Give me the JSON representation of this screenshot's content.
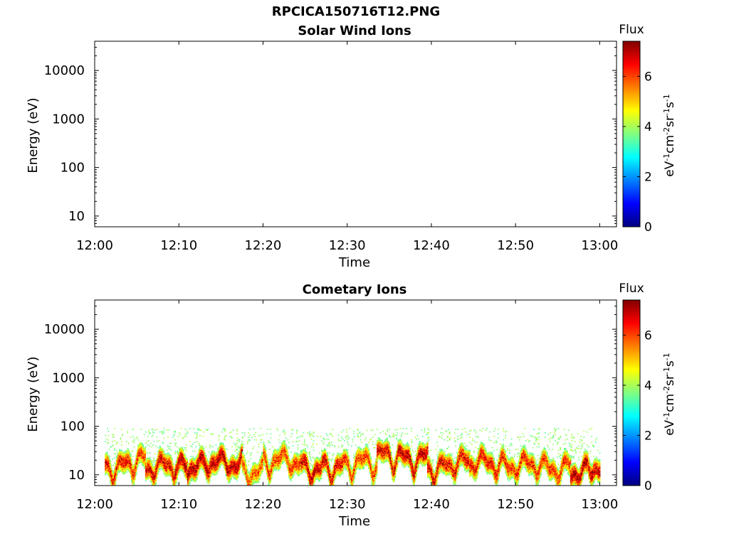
{
  "figure": {
    "filename": "RPCICA150716T12.PNG"
  },
  "chart_data": [
    {
      "type": "heatmap",
      "title": "Solar Wind Ions",
      "xlabel": "Time",
      "ylabel": "Energy (eV)",
      "yscale": "log",
      "xticks": [
        "12:00",
        "12:10",
        "12:20",
        "12:30",
        "12:40",
        "12:50",
        "13:00"
      ],
      "yticks": [
        "10",
        "100",
        "1000",
        "10000"
      ],
      "xlim_minutes": [
        0,
        62
      ],
      "ylim": [
        6,
        40000
      ],
      "colorbar": {
        "title": "Flux",
        "label": "eV-1cm-2sr-1s-1",
        "ticks": [
          "0",
          "2",
          "4",
          "6"
        ],
        "range": [
          0,
          7.4
        ],
        "colormap": "jet"
      },
      "segments": []
    },
    {
      "type": "heatmap",
      "title": "Cometary Ions",
      "xlabel": "Time",
      "ylabel": "Energy (eV)",
      "yscale": "log",
      "xticks": [
        "12:00",
        "12:10",
        "12:20",
        "12:30",
        "12:40",
        "12:50",
        "13:00"
      ],
      "yticks": [
        "10",
        "100",
        "1000",
        "10000"
      ],
      "xlim_minutes": [
        0,
        62
      ],
      "ylim": [
        6,
        40000
      ],
      "colorbar": {
        "title": "Flux",
        "label": "eV-1cm-2sr-1s-1",
        "ticks": [
          "0",
          "2",
          "4",
          "6"
        ],
        "range": [
          0,
          7.4
        ],
        "colormap": "jet"
      },
      "segments": [
        {
          "t": [
            1.2,
            4.5
          ],
          "center_eV": 15,
          "peak_flux": 6.6
        },
        {
          "t": [
            4.5,
            6.0
          ],
          "center_eV": 20,
          "peak_flux": 6.2
        },
        {
          "t": [
            6.0,
            9.5
          ],
          "center_eV": 15,
          "peak_flux": 6.8
        },
        {
          "t": [
            9.5,
            11.0
          ],
          "center_eV": 14,
          "peak_flux": 7.2
        },
        {
          "t": [
            11.0,
            13.5
          ],
          "center_eV": 15,
          "peak_flux": 7.3
        },
        {
          "t": [
            13.5,
            17.5
          ],
          "center_eV": 18,
          "peak_flux": 7.2
        },
        {
          "t": [
            17.5,
            20.0
          ],
          "center_eV": 12,
          "peak_flux": 6.0
        },
        {
          "t": [
            20.0,
            24.5
          ],
          "center_eV": 20,
          "peak_flux": 6.3
        },
        {
          "t": [
            24.5,
            27.0
          ],
          "center_eV": 14,
          "peak_flux": 7.0
        },
        {
          "t": [
            27.0,
            29.5
          ],
          "center_eV": 15,
          "peak_flux": 6.8
        },
        {
          "t": [
            29.5,
            33.5
          ],
          "center_eV": 18,
          "peak_flux": 6.2
        },
        {
          "t": [
            33.5,
            36.0
          ],
          "center_eV": 25,
          "peak_flux": 6.8
        },
        {
          "t": [
            36.0,
            39.5
          ],
          "center_eV": 22,
          "peak_flux": 7.0
        },
        {
          "t": [
            39.5,
            41.5
          ],
          "center_eV": 14,
          "peak_flux": 6.8
        },
        {
          "t": [
            41.5,
            44.5
          ],
          "center_eV": 18,
          "peak_flux": 6.7
        },
        {
          "t": [
            44.5,
            48.5
          ],
          "center_eV": 18,
          "peak_flux": 6.6
        },
        {
          "t": [
            48.5,
            52.5
          ],
          "center_eV": 16,
          "peak_flux": 6.4
        },
        {
          "t": [
            52.5,
            56.5
          ],
          "center_eV": 14,
          "peak_flux": 6.3
        },
        {
          "t": [
            56.5,
            58.5
          ],
          "center_eV": 12,
          "peak_flux": 7.2
        },
        {
          "t": [
            58.5,
            60.0
          ],
          "center_eV": 15,
          "peak_flux": 7.0
        }
      ]
    }
  ]
}
